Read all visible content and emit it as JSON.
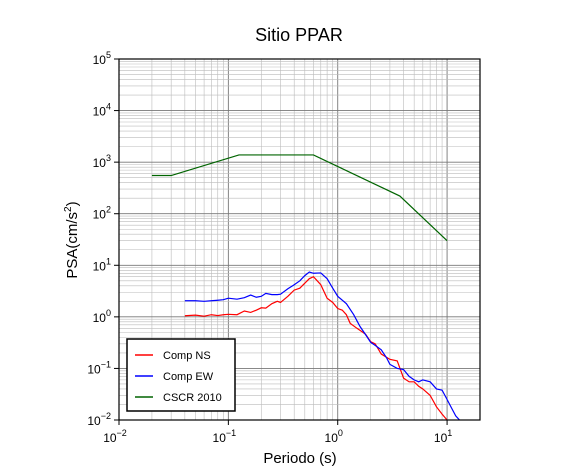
{
  "chart_data": {
    "type": "line",
    "title": "Sitio PPAR",
    "xlabel": "Periodo (s)",
    "ylabel_base": "PSA(cm/s",
    "ylabel_sup": "2",
    "ylabel_close": ")",
    "x_scale": "log",
    "y_scale": "log",
    "xlim": [
      0.01,
      20
    ],
    "ylim": [
      0.01,
      100000
    ],
    "grid": true,
    "legend_position": "bottom-left",
    "x_ticks": [
      {
        "base": "10",
        "exp": "−2"
      },
      {
        "base": "10",
        "exp": "−1"
      },
      {
        "base": "10",
        "exp": "0"
      },
      {
        "base": "10",
        "exp": "1"
      }
    ],
    "y_ticks": [
      {
        "base": "10",
        "exp": "−2"
      },
      {
        "base": "10",
        "exp": "−1"
      },
      {
        "base": "10",
        "exp": "0"
      },
      {
        "base": "10",
        "exp": "1"
      },
      {
        "base": "10",
        "exp": "2"
      },
      {
        "base": "10",
        "exp": "3"
      },
      {
        "base": "10",
        "exp": "4"
      },
      {
        "base": "10",
        "exp": "5"
      }
    ],
    "series": [
      {
        "name": "Comp NS",
        "color": "#ff0000",
        "points": [
          [
            0.04,
            1.05
          ],
          [
            0.05,
            1.08
          ],
          [
            0.06,
            1.03
          ],
          [
            0.07,
            1.1
          ],
          [
            0.08,
            1.06
          ],
          [
            0.09,
            1.1
          ],
          [
            0.1,
            1.12
          ],
          [
            0.12,
            1.1
          ],
          [
            0.14,
            1.3
          ],
          [
            0.16,
            1.22
          ],
          [
            0.18,
            1.35
          ],
          [
            0.2,
            1.5
          ],
          [
            0.22,
            1.48
          ],
          [
            0.25,
            1.8
          ],
          [
            0.28,
            2.0
          ],
          [
            0.3,
            1.9
          ],
          [
            0.35,
            2.5
          ],
          [
            0.4,
            3.3
          ],
          [
            0.45,
            3.6
          ],
          [
            0.5,
            4.5
          ],
          [
            0.55,
            5.5
          ],
          [
            0.6,
            6.0
          ],
          [
            0.65,
            5.0
          ],
          [
            0.7,
            4.2
          ],
          [
            0.8,
            2.3
          ],
          [
            0.9,
            1.9
          ],
          [
            1.0,
            1.45
          ],
          [
            1.1,
            1.35
          ],
          [
            1.2,
            1.1
          ],
          [
            1.3,
            0.75
          ],
          [
            1.5,
            0.6
          ],
          [
            1.8,
            0.46
          ],
          [
            2.0,
            0.33
          ],
          [
            2.2,
            0.3
          ],
          [
            2.5,
            0.19
          ],
          [
            3.0,
            0.15
          ],
          [
            3.5,
            0.14
          ],
          [
            4.0,
            0.065
          ],
          [
            4.5,
            0.055
          ],
          [
            5.0,
            0.055
          ],
          [
            5.5,
            0.045
          ],
          [
            6.0,
            0.04
          ],
          [
            7.0,
            0.03
          ],
          [
            8.0,
            0.018
          ],
          [
            9.0,
            0.013
          ],
          [
            10.0,
            0.01
          ]
        ]
      },
      {
        "name": "Comp EW",
        "color": "#0000ff",
        "points": [
          [
            0.04,
            2.05
          ],
          [
            0.05,
            2.05
          ],
          [
            0.06,
            2.0
          ],
          [
            0.07,
            2.05
          ],
          [
            0.08,
            2.1
          ],
          [
            0.09,
            2.15
          ],
          [
            0.1,
            2.3
          ],
          [
            0.12,
            2.2
          ],
          [
            0.14,
            2.35
          ],
          [
            0.16,
            2.65
          ],
          [
            0.18,
            2.4
          ],
          [
            0.2,
            2.5
          ],
          [
            0.22,
            2.85
          ],
          [
            0.25,
            2.7
          ],
          [
            0.28,
            2.7
          ],
          [
            0.3,
            2.75
          ],
          [
            0.35,
            3.5
          ],
          [
            0.4,
            4.2
          ],
          [
            0.45,
            5.0
          ],
          [
            0.5,
            6.3
          ],
          [
            0.55,
            7.4
          ],
          [
            0.6,
            7.0
          ],
          [
            0.7,
            7.1
          ],
          [
            0.8,
            5.5
          ],
          [
            0.9,
            3.6
          ],
          [
            1.0,
            2.5
          ],
          [
            1.2,
            1.8
          ],
          [
            1.4,
            1.1
          ],
          [
            1.6,
            0.65
          ],
          [
            1.8,
            0.45
          ],
          [
            2.0,
            0.32
          ],
          [
            2.2,
            0.28
          ],
          [
            2.5,
            0.23
          ],
          [
            2.8,
            0.16
          ],
          [
            3.0,
            0.12
          ],
          [
            3.5,
            0.1
          ],
          [
            4.0,
            0.095
          ],
          [
            4.5,
            0.07
          ],
          [
            5.0,
            0.06
          ],
          [
            5.5,
            0.055
          ],
          [
            6.0,
            0.06
          ],
          [
            7.0,
            0.055
          ],
          [
            8.0,
            0.04
          ],
          [
            9.0,
            0.038
          ],
          [
            10.0,
            0.025
          ],
          [
            11.0,
            0.017
          ],
          [
            12.0,
            0.012
          ],
          [
            13.0,
            0.01
          ]
        ]
      },
      {
        "name": "CSCR 2010",
        "color": "#006400",
        "points": [
          [
            0.02,
            550
          ],
          [
            0.03,
            550
          ],
          [
            0.125,
            1380
          ],
          [
            0.6,
            1380
          ],
          [
            3.7,
            220
          ],
          [
            10.0,
            30
          ]
        ]
      }
    ]
  }
}
